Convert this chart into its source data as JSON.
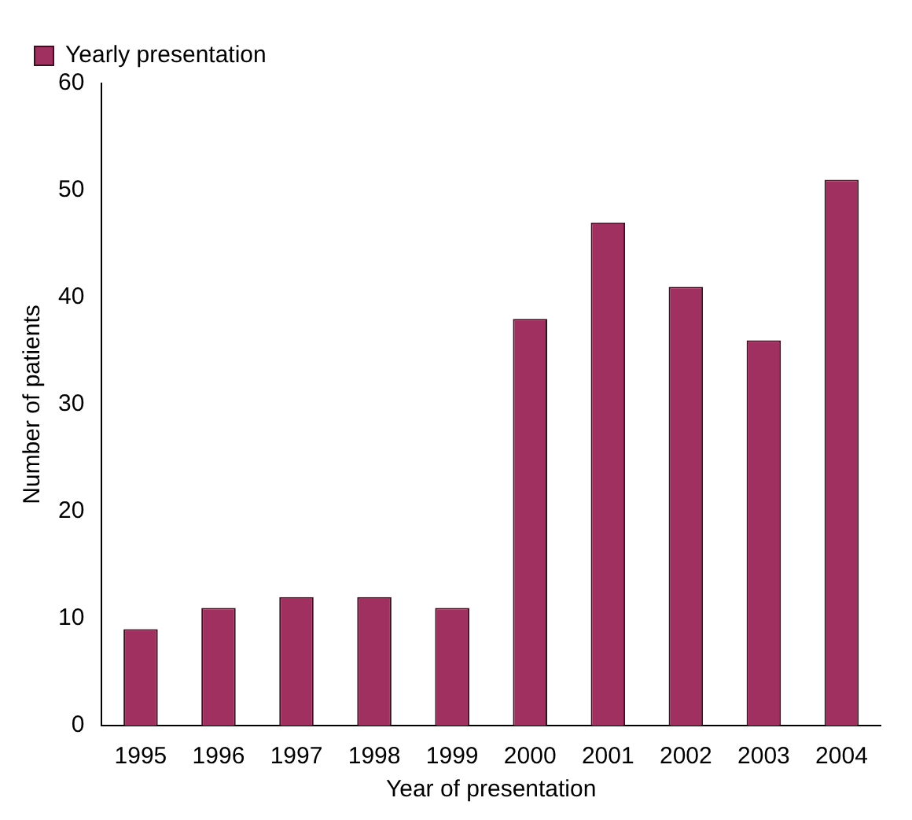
{
  "chart_data": {
    "type": "bar",
    "xlabel": "Year of presentation",
    "ylabel": "Number of patients",
    "categories": [
      "1995",
      "1996",
      "1997",
      "1998",
      "1999",
      "2000",
      "2001",
      "2002",
      "2003",
      "2004"
    ],
    "series": [
      {
        "name": "Yearly presentation",
        "color": "#a0305f",
        "values": [
          9,
          11,
          12,
          12,
          11,
          38,
          47,
          41,
          36,
          51
        ]
      }
    ],
    "ylim": [
      0,
      60
    ],
    "yticks": [
      0,
      10,
      20,
      30,
      40,
      50,
      60
    ],
    "grid": false,
    "legend": "top left"
  }
}
